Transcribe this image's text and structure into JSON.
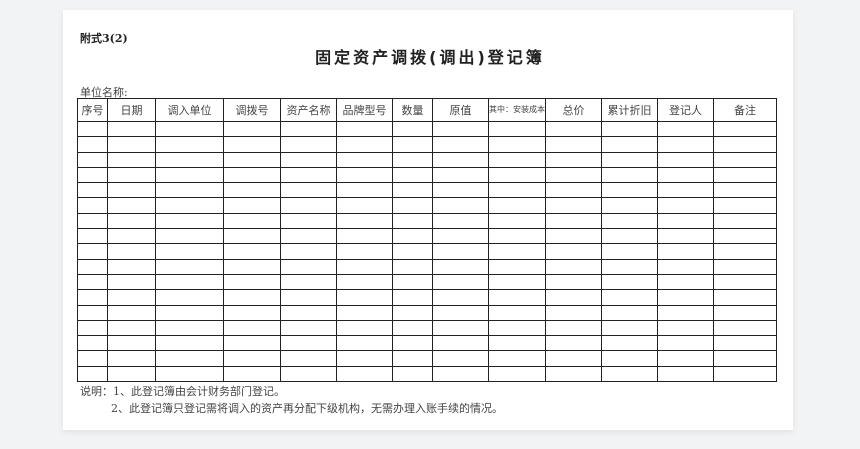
{
  "annex_label": "附式3(2)",
  "title": "固定资产调拨(调出)登记簿",
  "unit_name_label": "单位名称:",
  "columns": [
    "序号",
    "日期",
    "调入单位",
    "调拨号",
    "资产名称",
    "品牌型号",
    "数量",
    "原值",
    "其中：安装成本",
    "总价",
    "累计折旧",
    "登记人",
    "备注"
  ],
  "row_count": 17,
  "notes": {
    "line1": "说明：1、此登记簿由会计财务部门登记。",
    "line2": "2、此登记簿只登记需将调入的资产再分配下级机构，无需办理入账手续的情况。"
  }
}
